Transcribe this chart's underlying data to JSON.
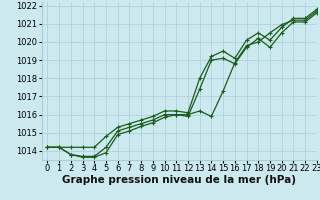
{
  "xlabel": "Graphe pression niveau de la mer (hPa)",
  "ylim": [
    1013.5,
    1022.2
  ],
  "xlim": [
    -0.5,
    23
  ],
  "yticks": [
    1014,
    1015,
    1016,
    1017,
    1018,
    1019,
    1020,
    1021,
    1022
  ],
  "xticks": [
    0,
    1,
    2,
    3,
    4,
    5,
    6,
    7,
    8,
    9,
    10,
    11,
    12,
    13,
    14,
    15,
    16,
    17,
    18,
    19,
    20,
    21,
    22,
    23
  ],
  "bg_color": "#cce9f0",
  "grid_color": "#aacdd8",
  "line_color": "#1a5c1a",
  "line1_y": [
    1014.2,
    1014.2,
    1013.8,
    1013.7,
    1013.7,
    1014.2,
    1015.1,
    1015.3,
    1015.5,
    1015.7,
    1016.0,
    1016.0,
    1015.9,
    1017.4,
    1019.0,
    1019.1,
    1018.8,
    1019.7,
    1020.2,
    1019.7,
    1020.5,
    1021.1,
    1021.1,
    1021.6
  ],
  "line2_y": [
    1014.2,
    1014.2,
    1014.2,
    1014.2,
    1014.2,
    1014.8,
    1015.3,
    1015.5,
    1015.7,
    1015.9,
    1016.2,
    1016.2,
    1016.1,
    1018.0,
    1019.2,
    1019.5,
    1019.1,
    1020.1,
    1020.5,
    1020.1,
    1020.8,
    1021.3,
    1021.3,
    1021.8
  ],
  "line3_y": [
    1014.2,
    1014.2,
    1013.8,
    1013.65,
    1013.65,
    1013.9,
    1014.9,
    1015.1,
    1015.35,
    1015.55,
    1015.85,
    1016.0,
    1016.0,
    1016.2,
    1015.9,
    1017.3,
    1018.85,
    1019.8,
    1020.0,
    1020.5,
    1020.95,
    1021.2,
    1021.2,
    1021.7
  ],
  "marker": "+",
  "markersize": 3.5,
  "linewidth": 0.9,
  "xlabel_fontsize": 7.5,
  "tick_fontsize": 6.0
}
